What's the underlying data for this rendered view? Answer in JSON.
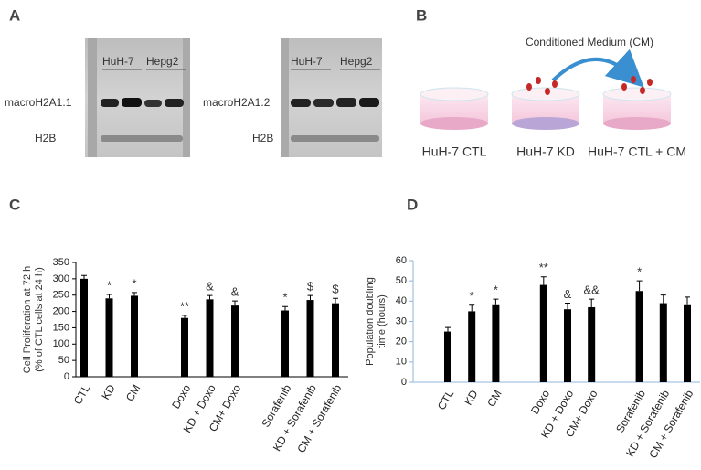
{
  "panel_A": {
    "letter": "A",
    "blots": [
      {
        "groups": [
          "HuH-7",
          "Hepg2"
        ],
        "band_labels": [
          "macroH2A1.1",
          "H2B"
        ]
      },
      {
        "groups": [
          "HuH-7",
          "Hepg2"
        ],
        "band_labels": [
          "macroH2A1.2",
          "H2B"
        ]
      }
    ]
  },
  "panel_B": {
    "letter": "B",
    "arrow_label": "Conditioned Medium (CM)",
    "dishes": [
      "HuH-7 CTL",
      "HuH-7 KD",
      "HuH-7 CTL + CM"
    ]
  },
  "chart_data": [
    {
      "type": "bar",
      "letter": "C",
      "y_label": [
        "Cell Proliferation at 72 h",
        "(% of CTL cells at 24 h)"
      ],
      "categories": [
        "CTL",
        "KD",
        "CM",
        null,
        "Doxo",
        "KD + Doxo",
        "CM+ Doxo",
        null,
        "Sorafenib",
        "KD + Sorafenib",
        "CM + Sorafenib"
      ],
      "values": [
        300,
        240,
        248,
        null,
        180,
        237,
        218,
        null,
        203,
        235,
        225
      ],
      "errors": [
        10,
        12,
        10,
        null,
        8,
        12,
        14,
        null,
        12,
        14,
        15
      ],
      "annotations": [
        null,
        "*",
        "*",
        null,
        "**",
        "&",
        "&",
        null,
        "*",
        "$",
        "$"
      ],
      "color": "#000000",
      "axis_color": "#000000",
      "ylim": [
        0,
        350
      ],
      "yticks": [
        0,
        50,
        100,
        150,
        200,
        250,
        300,
        350
      ],
      "grid": false
    },
    {
      "type": "bar",
      "letter": "D",
      "y_label": [
        "Population doubling",
        "time (hours)"
      ],
      "categories": [
        "CTL",
        "KD",
        "CM",
        null,
        "Doxo",
        "KD + Doxo",
        "CM+ Doxo",
        null,
        "Sorafenib",
        "KD + Sorafenib",
        "CM + Sorafenib"
      ],
      "values": [
        25,
        35,
        38,
        null,
        48,
        36,
        37,
        null,
        45,
        39,
        38
      ],
      "errors": [
        2,
        3,
        3,
        null,
        4,
        3,
        4,
        null,
        5,
        4,
        4
      ],
      "annotations": [
        null,
        "*",
        "*",
        null,
        "**",
        "&",
        "&&",
        null,
        "*",
        null,
        null
      ],
      "color": "#000000",
      "axis_color": "#8fb4dc",
      "ylim": [
        0,
        60
      ],
      "yticks": [
        0,
        10,
        20,
        30,
        40,
        50,
        60
      ],
      "grid": false
    }
  ]
}
